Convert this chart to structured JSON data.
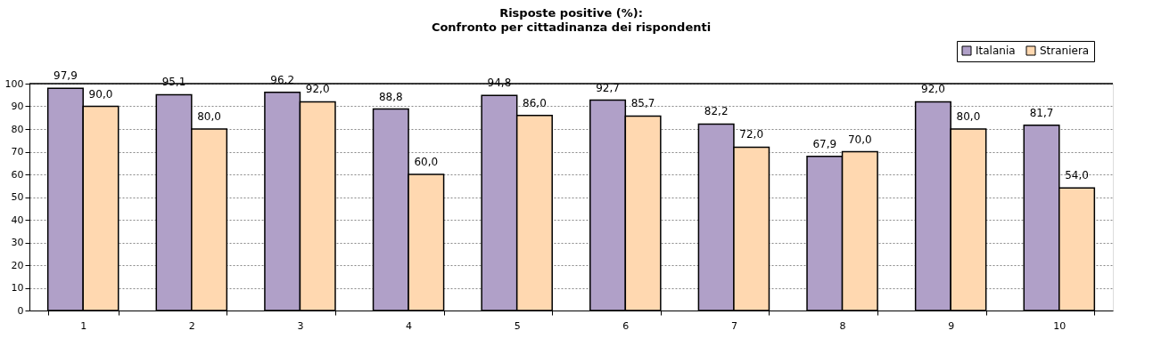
{
  "chart_data": {
    "type": "bar",
    "title": "Risposte positive (%):",
    "subtitle": "Confronto per cittadinanza dei rispondenti",
    "categories": [
      "1",
      "2",
      "3",
      "4",
      "5",
      "6",
      "7",
      "8",
      "9",
      "10"
    ],
    "series": [
      {
        "name": "Italania",
        "color": "#b0a0c8",
        "values": [
          97.9,
          95.1,
          96.2,
          88.8,
          94.8,
          92.7,
          82.2,
          67.9,
          92.0,
          81.7
        ],
        "value_labels": [
          "97,9",
          "95,1",
          "96,2",
          "88,8",
          "94,8",
          "92,7",
          "82,2",
          "67,9",
          "92,0",
          "81,7"
        ]
      },
      {
        "name": "Straniera",
        "color": "#ffd8b0",
        "values": [
          90.0,
          80.0,
          92.0,
          60.0,
          86.0,
          85.7,
          72.0,
          70.0,
          80.0,
          54.0
        ],
        "value_labels": [
          "90,0",
          "80,0",
          "92,0",
          "60,0",
          "86,0",
          "85,7",
          "72,0",
          "70,0",
          "80,0",
          "54,0"
        ]
      }
    ],
    "ylim": [
      0,
      100
    ],
    "yticks": [
      0,
      10,
      20,
      30,
      40,
      50,
      60,
      70,
      80,
      90,
      100
    ],
    "grid": "y",
    "legend": "top right"
  }
}
